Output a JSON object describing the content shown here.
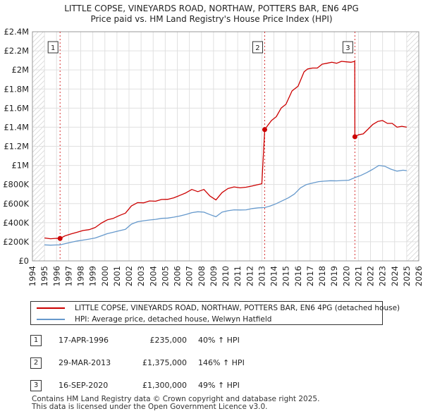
{
  "chart_data": {
    "type": "line",
    "title": "LITTLE COPSE, VINEYARDS ROAD, NORTHAW, POTTERS BAR, EN6 4PG",
    "subtitle": "Price paid vs. HM Land Registry's House Price Index (HPI)",
    "xlim": [
      1994,
      2026
    ],
    "ylim": [
      0,
      2400000
    ],
    "x_ticks": [
      "1994",
      "1995",
      "1996",
      "1997",
      "1998",
      "1999",
      "2000",
      "2001",
      "2002",
      "2003",
      "2004",
      "2005",
      "2006",
      "2007",
      "2008",
      "2009",
      "2010",
      "2011",
      "2012",
      "2013",
      "2014",
      "2015",
      "2016",
      "2017",
      "2018",
      "2019",
      "2020",
      "2021",
      "2022",
      "2023",
      "2024",
      "2025",
      "2026"
    ],
    "y_ticks": [
      {
        "value": 0,
        "label": "£0"
      },
      {
        "value": 200000,
        "label": "£200K"
      },
      {
        "value": 400000,
        "label": "£400K"
      },
      {
        "value": 600000,
        "label": "£600K"
      },
      {
        "value": 800000,
        "label": "£800K"
      },
      {
        "value": 1000000,
        "label": "£1M"
      },
      {
        "value": 1200000,
        "label": "£1.2M"
      },
      {
        "value": 1400000,
        "label": "£1.4M"
      },
      {
        "value": 1600000,
        "label": "£1.6M"
      },
      {
        "value": 1800000,
        "label": "£1.8M"
      },
      {
        "value": 2000000,
        "label": "£2M"
      },
      {
        "value": 2200000,
        "label": "£2.2M"
      },
      {
        "value": 2400000,
        "label": "£2.4M"
      }
    ],
    "grid": true,
    "hatch_before": 1995,
    "hatch_after": 2025,
    "series": [
      {
        "name": "LITTLE COPSE, VINEYARDS ROAD, NORTHAW, POTTERS BAR, EN6 4PG (detached house)",
        "color": "#cc0000",
        "x": [
          1995.0,
          1995.5,
          1996.0,
          1996.29,
          1996.7,
          1997.2,
          1997.7,
          1998.2,
          1998.7,
          1999.2,
          1999.7,
          2000.2,
          2000.7,
          2001.2,
          2001.7,
          2002.2,
          2002.7,
          2003.2,
          2003.7,
          2004.2,
          2004.7,
          2005.2,
          2005.7,
          2006.2,
          2006.7,
          2007.2,
          2007.7,
          2008.2,
          2008.7,
          2009.2,
          2009.7,
          2010.2,
          2010.7,
          2011.2,
          2011.7,
          2012.2,
          2012.7,
          2013.0,
          2013.24,
          2013.5,
          2013.8,
          2014.2,
          2014.6,
          2015.0,
          2015.5,
          2016.0,
          2016.5,
          2016.8,
          2017.2,
          2017.6,
          2018.0,
          2018.4,
          2018.8,
          2019.2,
          2019.6,
          2020.0,
          2020.4,
          2020.7,
          2020.71,
          2021.0,
          2021.4,
          2021.8,
          2022.2,
          2022.6,
          2023.0,
          2023.4,
          2023.8,
          2024.2,
          2024.6,
          2025.0
        ],
        "y": [
          240000,
          232000,
          236000,
          235000,
          262000,
          283000,
          300000,
          318000,
          327000,
          350000,
          395000,
          430000,
          445000,
          475000,
          500000,
          575000,
          610000,
          608000,
          628000,
          625000,
          643000,
          645000,
          660000,
          685000,
          712000,
          748000,
          725000,
          748000,
          680000,
          638000,
          715000,
          758000,
          775000,
          765000,
          772000,
          785000,
          800000,
          808000,
          1375000,
          1420000,
          1470000,
          1510000,
          1600000,
          1640000,
          1780000,
          1830000,
          1980000,
          2010000,
          2020000,
          2020000,
          2060000,
          2070000,
          2080000,
          2070000,
          2090000,
          2085000,
          2080000,
          2090000,
          1300000,
          1320000,
          1330000,
          1380000,
          1430000,
          1460000,
          1470000,
          1440000,
          1440000,
          1400000,
          1410000,
          1400000
        ]
      },
      {
        "name": "HPI: Average price, detached house, Welwyn Hatfield",
        "color": "#6699cc",
        "x": [
          1995.0,
          1995.5,
          1996.0,
          1996.29,
          1996.7,
          1997.2,
          1997.7,
          1998.2,
          1998.7,
          1999.2,
          1999.7,
          2000.2,
          2000.7,
          2001.2,
          2001.7,
          2002.2,
          2002.7,
          2003.2,
          2003.7,
          2004.2,
          2004.7,
          2005.2,
          2005.7,
          2006.2,
          2006.7,
          2007.2,
          2007.7,
          2008.2,
          2008.7,
          2009.2,
          2009.7,
          2010.2,
          2010.7,
          2011.2,
          2011.7,
          2012.2,
          2012.7,
          2013.24,
          2013.7,
          2014.2,
          2014.7,
          2015.2,
          2015.7,
          2016.2,
          2016.7,
          2017.2,
          2017.7,
          2018.2,
          2018.7,
          2019.2,
          2019.7,
          2020.2,
          2020.71,
          2021.2,
          2021.7,
          2022.2,
          2022.7,
          2023.2,
          2023.7,
          2024.2,
          2024.7,
          2025.0
        ],
        "y": [
          168000,
          165000,
          167000,
          168000,
          180000,
          195000,
          208000,
          218000,
          228000,
          240000,
          262000,
          285000,
          300000,
          315000,
          330000,
          385000,
          410000,
          420000,
          428000,
          435000,
          445000,
          448000,
          458000,
          470000,
          485000,
          505000,
          515000,
          510000,
          485000,
          462000,
          510000,
          525000,
          535000,
          533000,
          535000,
          548000,
          555000,
          558000,
          575000,
          600000,
          630000,
          660000,
          700000,
          765000,
          800000,
          815000,
          830000,
          835000,
          840000,
          838000,
          842000,
          845000,
          872000,
          895000,
          925000,
          960000,
          1000000,
          990000,
          960000,
          940000,
          950000,
          945000
        ]
      }
    ],
    "sales": [
      {
        "label": "1",
        "x": 1996.29,
        "y": 235000
      },
      {
        "label": "2",
        "x": 2013.24,
        "y": 1375000
      },
      {
        "label": "3",
        "x": 2020.71,
        "y": 1300000
      }
    ]
  },
  "legend": {
    "property_label": "LITTLE COPSE, VINEYARDS ROAD, NORTHAW, POTTERS BAR, EN6 4PG (detached house)",
    "hpi_label": "HPI: Average price, detached house, Welwyn Hatfield",
    "property_color": "#cc0000",
    "hpi_color": "#6699cc"
  },
  "sales_table": [
    {
      "num": "1",
      "date": "17-APR-1996",
      "price": "£235,000",
      "pct": "40% ↑ HPI"
    },
    {
      "num": "2",
      "date": "29-MAR-2013",
      "price": "£1,375,000",
      "pct": "146% ↑ HPI"
    },
    {
      "num": "3",
      "date": "16-SEP-2020",
      "price": "£1,300,000",
      "pct": "49% ↑ HPI"
    }
  ],
  "footer": {
    "line1": "Contains HM Land Registry data © Crown copyright and database right 2025.",
    "line2": "This data is licensed under the Open Government Licence v3.0."
  }
}
